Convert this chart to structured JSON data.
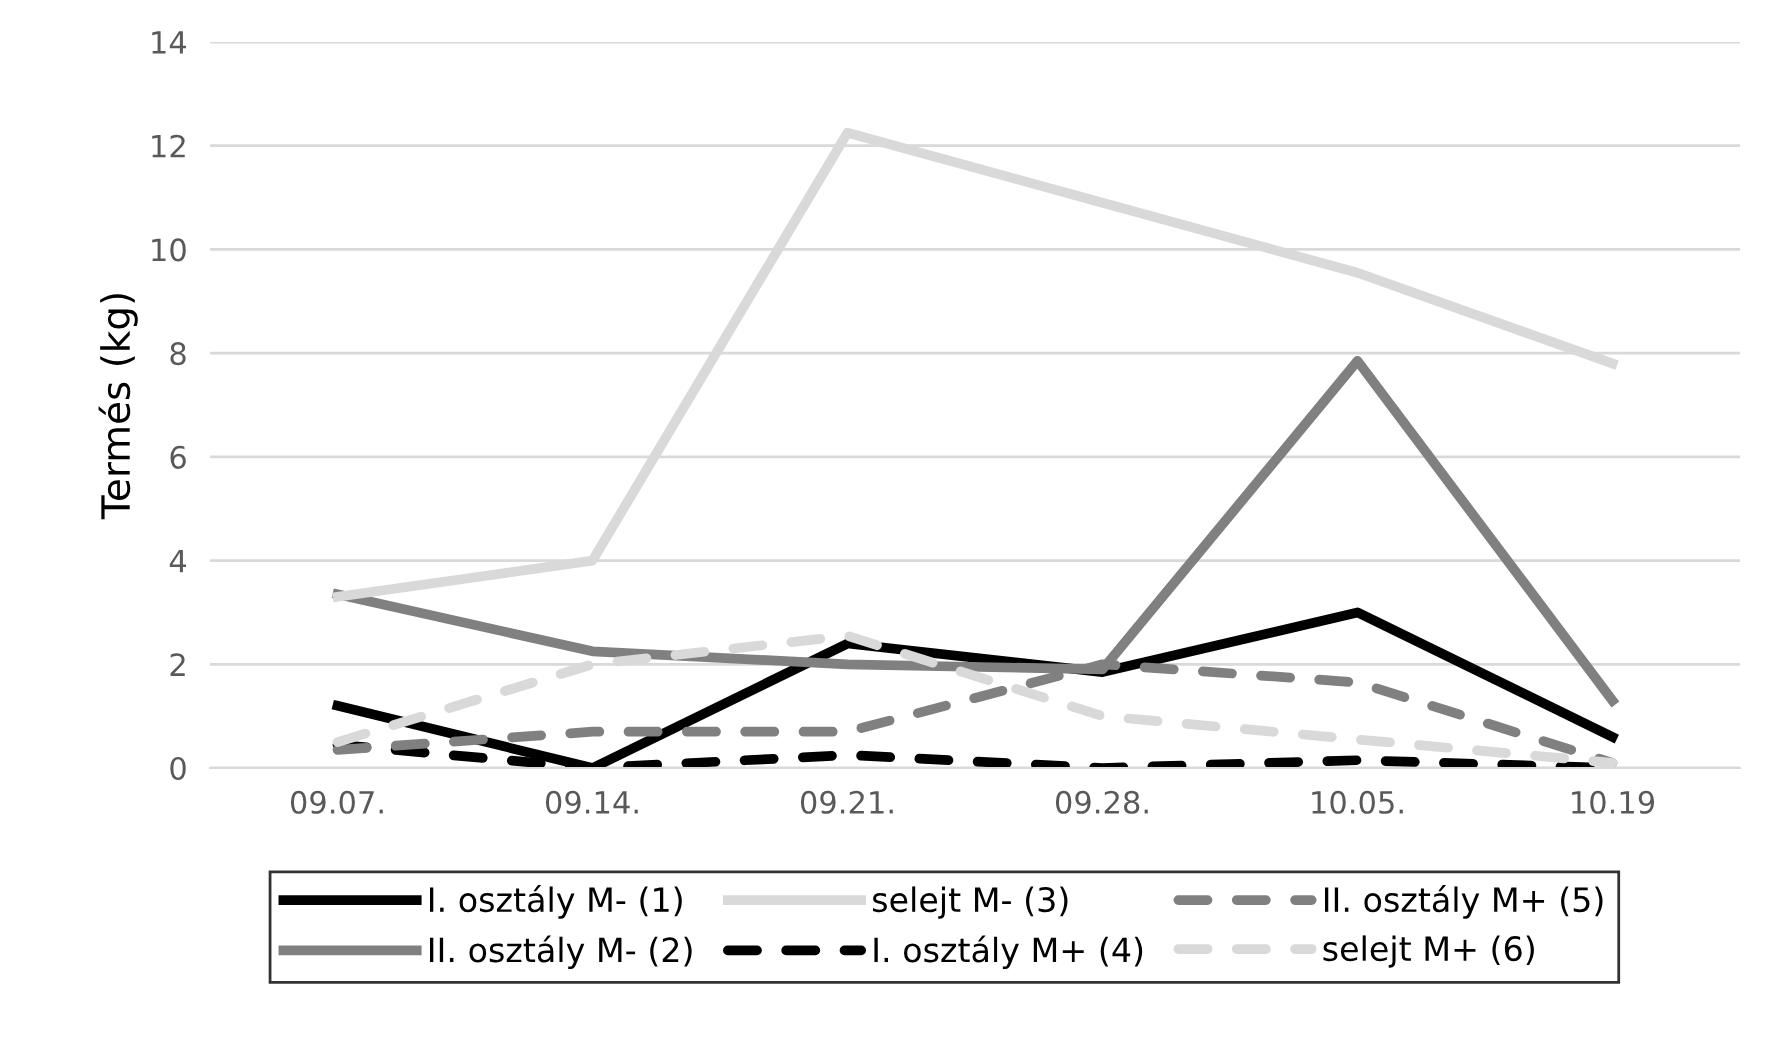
{
  "chart_data": {
    "type": "line",
    "ylabel": "Termés (kg)",
    "categories": [
      "09.07.",
      "09.14.",
      "09.21.",
      "09.28.",
      "10.05.",
      "10.19"
    ],
    "ylim": [
      0,
      14
    ],
    "yticks": [
      0,
      2,
      4,
      6,
      8,
      10,
      12,
      14
    ],
    "grid": "y",
    "legend": "bottom",
    "series": [
      {
        "name": "I. osztály M- (1)",
        "color": "#000000",
        "line_style": "solid",
        "values": [
          1.2,
          0.0,
          2.4,
          1.85,
          3.0,
          0.6
        ]
      },
      {
        "name": "II. osztály M- (2)",
        "color": "#808080",
        "line_style": "solid",
        "values": [
          3.35,
          2.25,
          2.0,
          1.9,
          7.85,
          1.3
        ]
      },
      {
        "name": "selejt M- (3)",
        "color": "#d9d9d9",
        "line_style": "solid",
        "values": [
          3.3,
          4.0,
          12.25,
          10.9,
          9.55,
          7.8
        ]
      },
      {
        "name": "I. osztály M+ (4)",
        "color": "#000000",
        "line_style": "dashed",
        "values": [
          0.45,
          0.0,
          0.25,
          0.0,
          0.15,
          0.0
        ]
      },
      {
        "name": "II. osztály M+ (5)",
        "color": "#808080",
        "line_style": "dashed",
        "values": [
          0.35,
          0.7,
          0.7,
          2.0,
          1.65,
          0.1
        ]
      },
      {
        "name": "selejt M+ (6)",
        "color": "#d9d9d9",
        "line_style": "dashed",
        "values": [
          0.5,
          2.0,
          2.55,
          1.0,
          0.55,
          0.1
        ]
      }
    ]
  }
}
